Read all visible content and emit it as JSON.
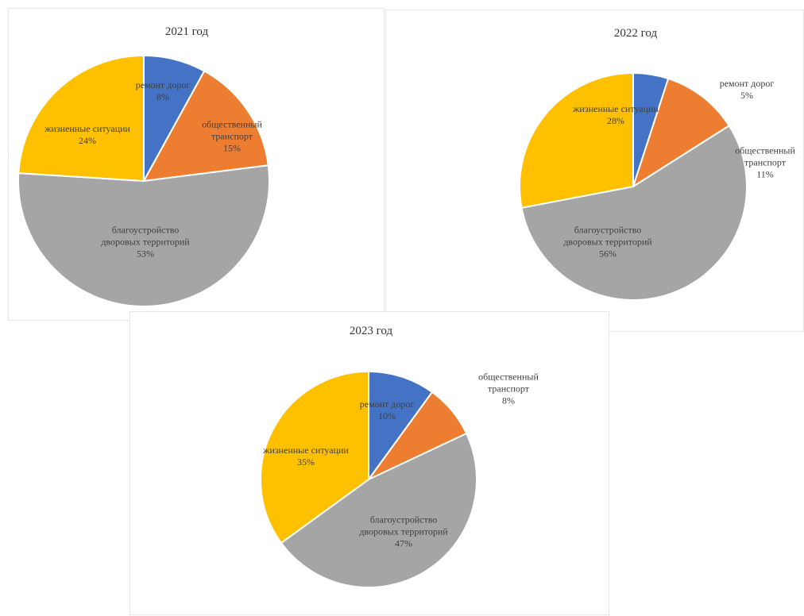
{
  "chart_data": [
    {
      "type": "pie",
      "title": "2021 год",
      "categories": [
        "ремонт дорог",
        "общественный транспорт",
        "благоустройство дворовых территорий",
        "жизненные ситуации"
      ],
      "values": [
        8,
        15,
        53,
        24
      ],
      "value_labels": [
        "8%",
        "15%",
        "53%",
        "24%"
      ],
      "colors": [
        "#4472c4",
        "#ed7d31",
        "#a5a5a5",
        "#ffc000"
      ]
    },
    {
      "type": "pie",
      "title": "2022 год",
      "categories": [
        "ремонт дорог",
        "общественный транспорт",
        "благоустройство дворовых территорий",
        "жизненные ситуации"
      ],
      "values": [
        5,
        11,
        56,
        28
      ],
      "value_labels": [
        "5%",
        "11%",
        "56%",
        "28%"
      ],
      "colors": [
        "#4472c4",
        "#ed7d31",
        "#a5a5a5",
        "#ffc000"
      ]
    },
    {
      "type": "pie",
      "title": "2023 год",
      "categories": [
        "ремонт дорог",
        "общественный транспорт",
        "благоустройство дворовых территорий",
        "жизненные ситуации"
      ],
      "values": [
        10,
        8,
        47,
        35
      ],
      "value_labels": [
        "10%",
        "8%",
        "47%",
        "35%"
      ],
      "colors": [
        "#4472c4",
        "#ed7d31",
        "#a5a5a5",
        "#ffc000"
      ]
    }
  ]
}
